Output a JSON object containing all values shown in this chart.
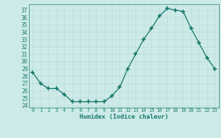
{
  "title": "",
  "xlabel": "Humidex (Indice chaleur)",
  "x": [
    0,
    1,
    2,
    3,
    4,
    5,
    6,
    7,
    8,
    9,
    10,
    11,
    12,
    13,
    14,
    15,
    16,
    17,
    18,
    19,
    20,
    21,
    22,
    23
  ],
  "y": [
    28.5,
    27.0,
    26.3,
    26.3,
    25.5,
    24.5,
    24.5,
    24.5,
    24.5,
    24.5,
    25.3,
    26.5,
    29.0,
    31.0,
    33.0,
    34.5,
    36.2,
    37.2,
    37.0,
    36.8,
    34.5,
    32.5,
    30.5,
    29.0
  ],
  "ylim": [
    23.7,
    37.8
  ],
  "yticks": [
    24,
    25,
    26,
    27,
    28,
    29,
    30,
    31,
    32,
    33,
    34,
    35,
    36,
    37
  ],
  "xticks": [
    0,
    1,
    2,
    3,
    4,
    5,
    6,
    7,
    8,
    9,
    10,
    11,
    12,
    13,
    14,
    15,
    16,
    17,
    18,
    19,
    20,
    21,
    22,
    23
  ],
  "line_color": "#1a7a6e",
  "bg_color": "#cceae8",
  "grid_color": "#b8d8d5",
  "font_color": "#1a7a6e",
  "marker": "+",
  "markersize": 4,
  "linewidth": 1.0
}
